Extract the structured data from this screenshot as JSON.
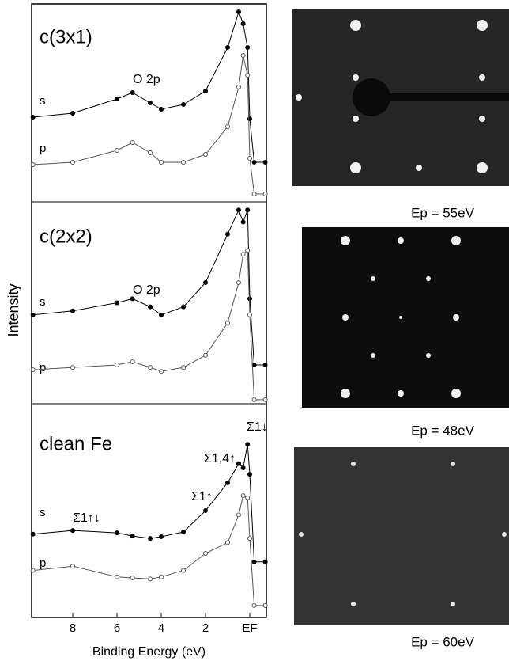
{
  "figure": {
    "ylabel": "Intensity"
  },
  "chart_data": [
    {
      "type": "line",
      "title": "c(3x1)",
      "annotations": [
        "O 2p"
      ],
      "x": [
        9.8,
        8,
        6,
        5.3,
        4.5,
        4,
        3,
        2,
        1,
        0.5,
        0.3,
        0.1,
        0,
        -0.2,
        -0.7
      ],
      "xlim": [
        9.86,
        -0.75
      ],
      "ylim": [
        0,
        10
      ],
      "series": [
        {
          "name": "s",
          "color": "#000000",
          "values": [
            4.28,
            4.48,
            5.2,
            5.52,
            5,
            4.68,
            4.92,
            5.6,
            7.8,
            9.6,
            9,
            7.8,
            4.2,
            2,
            2
          ]
        },
        {
          "name": "p",
          "color": "#555555",
          "values": [
            1.88,
            2,
            2.6,
            3,
            2.48,
            2,
            2,
            2.4,
            3.8,
            5.8,
            7.4,
            6.4,
            2.2,
            0.4,
            0.4
          ]
        }
      ]
    },
    {
      "type": "line",
      "title": "c(2x2)",
      "annotations": [
        "O 2p"
      ],
      "x": [
        9.8,
        8,
        6,
        5.3,
        4.5,
        4,
        3,
        2,
        1,
        0.5,
        0.3,
        0.1,
        0,
        -0.2,
        -0.7
      ],
      "xlim": [
        9.86,
        -0.75
      ],
      "ylim": [
        0,
        10
      ],
      "series": [
        {
          "name": "s",
          "color": "#000000",
          "values": [
            4.4,
            4.6,
            5,
            5.2,
            4.8,
            4.4,
            4.8,
            6,
            8.4,
            9.6,
            9,
            9.6,
            5.2,
            1.92,
            1.92
          ]
        },
        {
          "name": "p",
          "color": "#555555",
          "values": [
            1.68,
            1.8,
            1.92,
            2.08,
            1.8,
            1.6,
            1.8,
            2.4,
            4,
            6,
            7.4,
            7.6,
            4.4,
            0.2,
            0.2
          ]
        }
      ]
    },
    {
      "type": "line",
      "title": "clean Fe",
      "annotations": [
        "Σ1↑↓",
        "Σ1↑",
        "Σ1,4↑",
        "Σ1↓"
      ],
      "x": [
        9.8,
        8,
        6,
        5.3,
        4.5,
        4,
        3,
        2,
        1,
        0.5,
        0.3,
        0.1,
        0,
        -0.2,
        -0.7
      ],
      "xlim": [
        9.86,
        -0.75
      ],
      "ylim": [
        0,
        10
      ],
      "xlabel": "Binding Energy (eV)",
      "xticks": [
        8,
        6,
        4,
        2,
        {
          "value": 0,
          "label": "EF"
        }
      ],
      "series": [
        {
          "name": "s",
          "color": "#000000",
          "values": [
            3.9,
            4.07,
            3.96,
            3.81,
            3.7,
            3.78,
            4,
            5,
            6.3,
            7.2,
            7,
            8.1,
            6.7,
            2.6,
            2.6
          ]
        },
        {
          "name": "p",
          "color": "#555555",
          "values": [
            2.2,
            2.4,
            1.9,
            1.85,
            1.8,
            1.9,
            2.2,
            3,
            3.5,
            4.8,
            5.7,
            5.6,
            3.7,
            0.56,
            0.56
          ]
        }
      ]
    }
  ],
  "images": [
    {
      "caption": "Ep = 55eV"
    },
    {
      "caption": "Ep = 48eV"
    },
    {
      "caption": "Ep = 60eV"
    }
  ]
}
